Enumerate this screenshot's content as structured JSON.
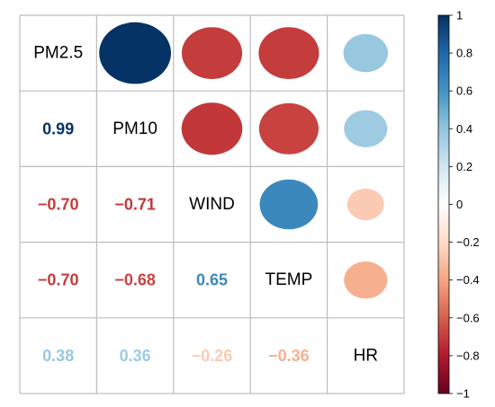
{
  "chart_data": {
    "type": "heatmap",
    "variables": [
      "PM2.5",
      "PM10",
      "WIND",
      "TEMP",
      "HR"
    ],
    "matrix": [
      [
        1.0,
        0.99,
        -0.7,
        -0.7,
        0.38
      ],
      [
        0.99,
        1.0,
        -0.71,
        -0.68,
        0.36
      ],
      [
        -0.7,
        -0.71,
        1.0,
        0.65,
        -0.26
      ],
      [
        -0.7,
        -0.68,
        0.65,
        1.0,
        -0.36
      ],
      [
        0.38,
        0.36,
        -0.26,
        -0.36,
        1.0
      ]
    ],
    "lower_labels": [
      {
        "row": 1,
        "col": 0,
        "text": "0.99"
      },
      {
        "row": 2,
        "col": 0,
        "text": "−0.70"
      },
      {
        "row": 2,
        "col": 1,
        "text": "−0.71"
      },
      {
        "row": 3,
        "col": 0,
        "text": "−0.70"
      },
      {
        "row": 3,
        "col": 1,
        "text": "−0.68"
      },
      {
        "row": 3,
        "col": 2,
        "text": "0.65"
      },
      {
        "row": 4,
        "col": 0,
        "text": "0.38"
      },
      {
        "row": 4,
        "col": 1,
        "text": "0.36"
      },
      {
        "row": 4,
        "col": 2,
        "text": "−0.26"
      },
      {
        "row": 4,
        "col": 3,
        "text": "−0.36"
      }
    ],
    "upper_shape": "ellipse",
    "color_scale": {
      "domain": [
        -1,
        1
      ],
      "colors": [
        "#67001F",
        "#B2182B",
        "#D6604D",
        "#F4A582",
        "#FDDBC7",
        "#FFFFFF",
        "#D1E5F0",
        "#92C5DE",
        "#4393C3",
        "#2166AC",
        "#053061"
      ],
      "ticks": [
        "1",
        "0.8",
        "0.6",
        "0.4",
        "0.2",
        "0",
        "−0.2",
        "−0.4",
        "−0.6",
        "−0.8",
        "−1"
      ]
    },
    "grid": true,
    "legend": "right"
  }
}
